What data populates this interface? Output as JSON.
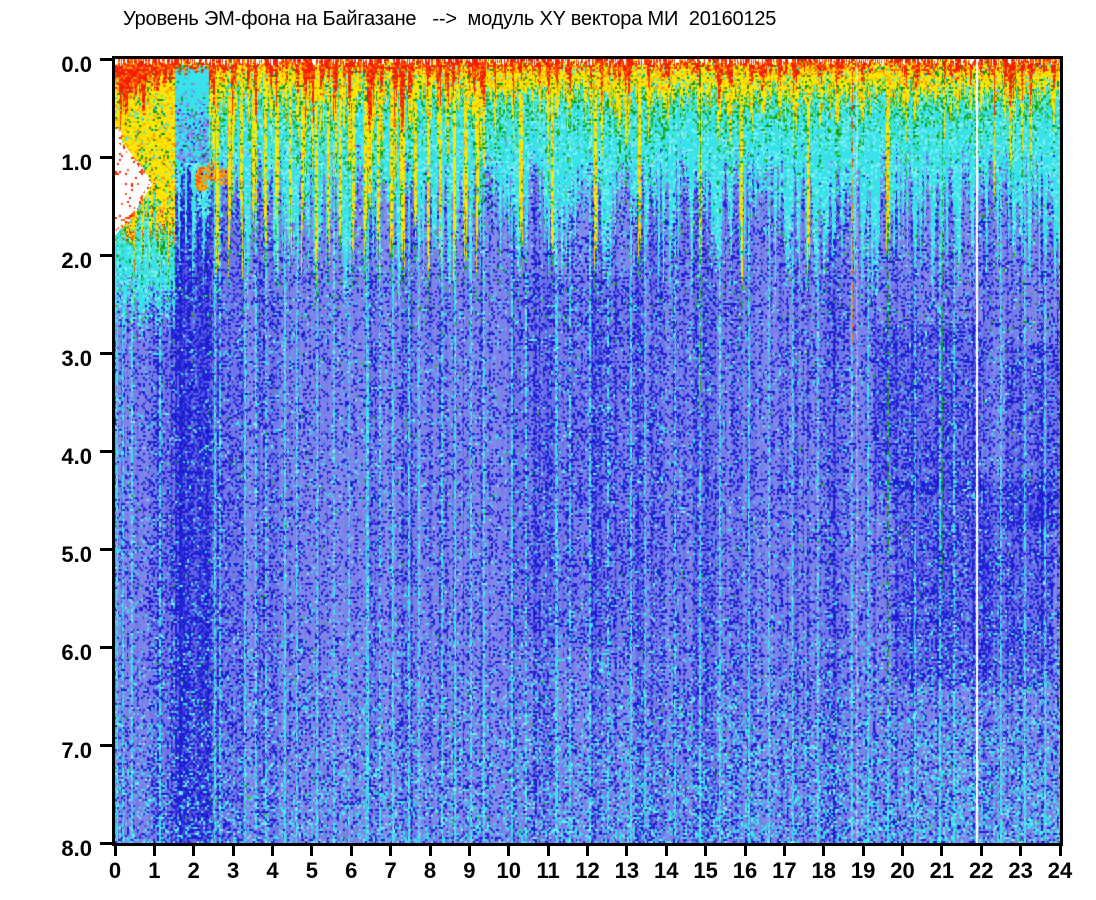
{
  "chart_data": {
    "type": "heatmap",
    "title": "Уровень ЭМ-фона на Байгазане   -->  модуль XY вектора МИ  20160125",
    "xlabel": "",
    "ylabel": "",
    "x_axis": {
      "min": 0,
      "max": 24,
      "tick_labels": [
        "0",
        "1",
        "2",
        "3",
        "4",
        "5",
        "6",
        "7",
        "8",
        "9",
        "10",
        "11",
        "12",
        "13",
        "14",
        "15",
        "16",
        "17",
        "18",
        "19",
        "20",
        "21",
        "22",
        "23",
        "24"
      ]
    },
    "y_axis": {
      "min": 0.0,
      "max": 8.0,
      "inverted": true,
      "tick_labels": [
        "0.0",
        "1.0",
        "2.0",
        "3.0",
        "4.0",
        "5.0",
        "6.0",
        "7.0",
        "8.0"
      ]
    },
    "grid": false,
    "legend": "none",
    "render": {
      "seed": 20160125,
      "colors": {
        "white": "#ffffff",
        "red": "#f42005",
        "red2": "#ff5a00",
        "orange": "#ff9800",
        "yellow": "#ffe600",
        "yellow2": "#f0c400",
        "green": "#109a18",
        "green2": "#33bb22",
        "cyan": "#38e2e8",
        "cyan2": "#7df0f2",
        "blue_light": "#9198ee",
        "blue_mid": "#6a72e6",
        "blue_dark": "#2424da",
        "blue_deep": "#1212c0"
      },
      "spike_zones": [
        [
          9.2,
          0.9
        ],
        [
          17.5,
          0.5
        ],
        [
          22.3,
          0.32
        ],
        [
          24.1,
          0.6
        ]
      ],
      "crust": {
        "red_base": 0.05,
        "top_white_p": 0.3,
        "yellow_extra": 0.25,
        "green_extra": 0.6
      },
      "cyan_zone": {
        "end_base": 1.35,
        "end_var": 1.4,
        "base_p": 0.05
      },
      "body": {
        "dark_p": 0.11,
        "bottom_cyan_start": 5.6,
        "bottom_cyan_max": 0.3
      },
      "quiet_top_band": {
        "h": [
          1.52,
          2.38
        ],
        "d": [
          0.1,
          1.06
        ]
      },
      "white_gap": {
        "h_max": 0.95,
        "d_top": 0.78,
        "d_bottom": 1.72
      },
      "left_crust": {
        "h_max": 1.55,
        "yellow_depth": 1.75,
        "green_extra": 0.4
      },
      "orange_blob": {
        "ellipses": [
          [
            2.18,
            1.22,
            0.17,
            0.13
          ],
          [
            2.45,
            1.15,
            0.18,
            0.1
          ],
          [
            2.74,
            1.2,
            0.2,
            0.09
          ]
        ]
      },
      "dark_band": {
        "h": [
          1.52,
          2.45
        ],
        "d_top": 1.05,
        "strength": 0.8
      },
      "dark_patches": [
        [
          0.9,
          1.55,
          2.0,
          8.0,
          0.3
        ],
        [
          2.45,
          3.25,
          1.3,
          8.0,
          0.3
        ],
        [
          10.2,
          13.3,
          2.2,
          6.0,
          0.22
        ],
        [
          19.3,
          22.0,
          2.7,
          4.4,
          0.42
        ],
        [
          19.8,
          23.8,
          4.3,
          6.4,
          0.45
        ],
        [
          22.6,
          24.0,
          2.9,
          4.8,
          0.35
        ]
      ],
      "dark_columns": [
        [
          3.9,
          4.15,
          0.3
        ],
        [
          7.35,
          7.6,
          0.28
        ],
        [
          9.95,
          10.2,
          0.25
        ],
        [
          10.85,
          11.15,
          0.3
        ],
        [
          13.6,
          13.95,
          0.3
        ],
        [
          14.9,
          15.25,
          0.35
        ],
        [
          15.6,
          15.9,
          0.25
        ],
        [
          17.9,
          18.65,
          0.25
        ]
      ],
      "cyan_streaks": [
        0.05,
        0.18,
        0.42,
        1.12,
        2.52,
        2.66,
        3.3,
        3.58,
        3.82,
        4.3,
        4.62,
        5.12,
        5.55,
        5.92,
        6.4,
        6.72,
        7.05,
        7.45,
        7.72,
        8.3,
        8.62,
        9.02,
        9.35,
        10.08,
        10.42,
        11.2,
        11.55,
        12.05,
        12.5,
        13.1,
        13.45,
        14.2,
        14.85,
        15.35,
        16.1,
        16.6,
        17.2,
        17.85,
        18.7,
        19.1,
        19.62,
        20.3,
        20.95,
        21.3,
        22.5,
        23.1,
        23.6
      ],
      "yellow_streaks": [
        0.2,
        0.45,
        0.68,
        0.9,
        1.15,
        1.35,
        2.6,
        2.9,
        3.2,
        3.5,
        3.8,
        4.1,
        4.45,
        4.75,
        5.1,
        5.4,
        5.72,
        6.05,
        6.35,
        6.68,
        7.0,
        7.3,
        7.62,
        7.95,
        8.25,
        8.6,
        8.9,
        9.2,
        10.3,
        11.1,
        12.2,
        13.3,
        14.85,
        15.9,
        17.6,
        19.62
      ],
      "deep_streaks": [
        [
          18.72,
          "red",
          2.9
        ],
        [
          19.62,
          "yellow",
          6.6
        ],
        [
          21.0,
          "green",
          5.4
        ],
        [
          14.85,
          "green",
          3.6
        ]
      ],
      "white_lines": [
        [
          18.85,
          1,
          0.7
        ],
        [
          21.88,
          2,
          1.0
        ]
      ]
    }
  }
}
